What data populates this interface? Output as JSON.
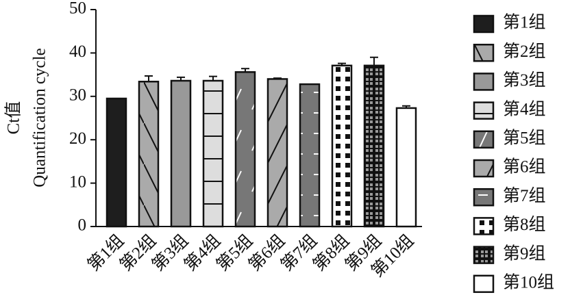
{
  "chart_data": {
    "type": "bar",
    "ylabel": [
      "Ct值",
      "Quantification cycle"
    ],
    "categories": [
      "第1组",
      "第2组",
      "第3组",
      "第4组",
      "第5组",
      "第6组",
      "第7组",
      "第8组",
      "第9组",
      "第10组"
    ],
    "values": [
      29.5,
      33.4,
      33.6,
      33.6,
      35.6,
      34.0,
      32.8,
      37.1,
      37.1,
      27.3
    ],
    "errors": [
      0,
      1.3,
      0.8,
      1.0,
      0.8,
      0.2,
      0,
      0.5,
      1.9,
      0.5
    ],
    "ylim": [
      0,
      50
    ],
    "yticks": [
      0,
      10,
      20,
      30,
      40,
      50
    ]
  }
}
